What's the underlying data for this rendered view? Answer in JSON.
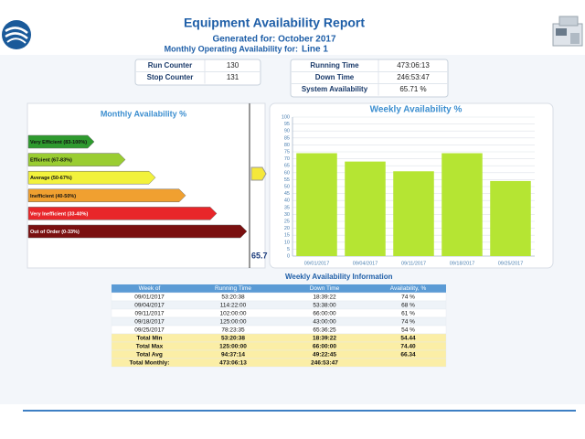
{
  "header": {
    "title": "Equipment Availability Report",
    "generated": "Generated for:  October 2017",
    "subtitle_label": "Monthly Operating Availability for:",
    "subtitle_value": "Line 1"
  },
  "counters": [
    [
      "Run Counter",
      "130"
    ],
    [
      "Stop Counter",
      "131"
    ]
  ],
  "times": [
    [
      "Running Time",
      "473:06:13"
    ],
    [
      "Down Time",
      "246:53:47"
    ],
    [
      "System Availability",
      "65.71 %"
    ]
  ],
  "monthly": {
    "title": "Monthly Availability %",
    "value": "65.7",
    "bands": [
      {
        "label": "Very Efficient (83-100%)",
        "color": "#2e9a2e"
      },
      {
        "label": "Efficient (67-83%)",
        "color": "#9acd32"
      },
      {
        "label": "Average (50-67%)",
        "color": "#f2f23c"
      },
      {
        "label": "Inefficient (40-50%)",
        "color": "#f0a030"
      },
      {
        "label": "Very Inefficient (33-40%)",
        "color": "#e8262a"
      },
      {
        "label": "Out of Order (0-33%)",
        "color": "#7a1010"
      }
    ]
  },
  "chart_data": {
    "type": "bar",
    "title": "Weekly Availability %",
    "categories": [
      "09/01/2017",
      "09/04/2017",
      "09/11/2017",
      "09/18/2017",
      "09/25/2017"
    ],
    "values": [
      74,
      68,
      61,
      74,
      54
    ],
    "color": "#b5e533",
    "ylim": [
      0,
      100
    ],
    "yticks": [
      0,
      5,
      10,
      15,
      20,
      25,
      30,
      35,
      40,
      45,
      50,
      55,
      60,
      65,
      70,
      75,
      80,
      85,
      90,
      95,
      100
    ],
    "grid": true
  },
  "table": {
    "title": "Weekly Availability Information",
    "columns": [
      "Week of",
      "Running Time",
      "Down Time",
      "Availability, %"
    ],
    "rows": [
      [
        "09/01/2017",
        "53:20:38",
        "18:39:22",
        "74 %"
      ],
      [
        "09/04/2017",
        "114:22:00",
        "53:38:00",
        "68 %"
      ],
      [
        "09/11/2017",
        "102:00:00",
        "66:00:00",
        "61 %"
      ],
      [
        "09/18/2017",
        "125:00:00",
        "43:00:00",
        "74 %"
      ],
      [
        "09/25/2017",
        "78:23:35",
        "65:36:25",
        "54 %"
      ]
    ],
    "totals": [
      [
        "Total Min",
        "53:20:38",
        "18:39:22",
        "54.44"
      ],
      [
        "Total Max",
        "125:00:00",
        "66:00:00",
        "74.40"
      ],
      [
        "Total Avg",
        "94:37:14",
        "49:22:45",
        "66.34"
      ],
      [
        "Total Monthly:",
        "473:06:13",
        "246:53:47"
      ]
    ]
  }
}
